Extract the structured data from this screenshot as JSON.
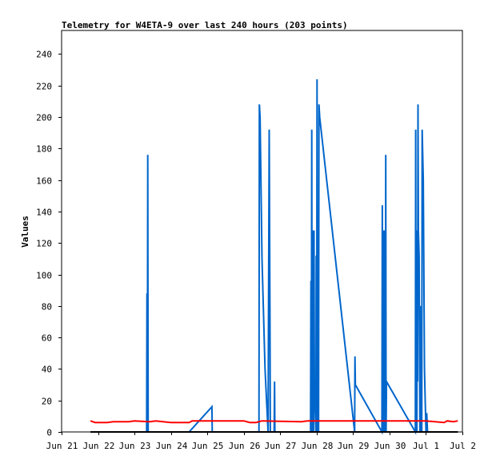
{
  "chart_data": {
    "type": "line",
    "title": "Telemetry for W4ETA-9 over last 240 hours (203 points)",
    "xlabel": "",
    "ylabel": "Values",
    "ylim": [
      0,
      255
    ],
    "yticks": [
      0,
      20,
      40,
      60,
      80,
      100,
      120,
      140,
      160,
      180,
      200,
      220,
      240
    ],
    "xlim": [
      "2024-06-21T00:00",
      "2024-07-02T00:00"
    ],
    "xticks": [
      {
        "label": "Jun 21",
        "x": "2024-06-21T00:00"
      },
      {
        "label": "Jun 22",
        "x": "2024-06-22T00:00"
      },
      {
        "label": "Jun 23",
        "x": "2024-06-23T00:00"
      },
      {
        "label": "Jun 24",
        "x": "2024-06-24T00:00"
      },
      {
        "label": "Jun 25",
        "x": "2024-06-25T00:00"
      },
      {
        "label": "Jun 26",
        "x": "2024-06-26T00:00"
      },
      {
        "label": "Jun 27",
        "x": "2024-06-27T00:00"
      },
      {
        "label": "Jun 28",
        "x": "2024-06-28T00:00"
      },
      {
        "label": "Jun 29",
        "x": "2024-06-29T00:00"
      },
      {
        "label": "Jun 30",
        "x": "2024-06-30T00:00"
      },
      {
        "label": "Jul 1",
        "x": "2024-07-01T00:00"
      },
      {
        "label": "Jul 2",
        "x": "2024-07-02T00:00"
      }
    ],
    "grid": false,
    "series": [
      {
        "color": "#0066cc",
        "points": [
          [
            "2024-06-23T08:00",
            0
          ],
          [
            "2024-06-23T08:15",
            88
          ],
          [
            "2024-06-23T08:30",
            0
          ],
          [
            "2024-06-23T08:45",
            176
          ],
          [
            "2024-06-23T09:00",
            0
          ],
          [
            "2024-06-24T12:00",
            0
          ],
          [
            "2024-06-25T03:00",
            16
          ],
          [
            "2024-06-25T03:15",
            0
          ],
          [
            "2024-06-26T10:00",
            0
          ],
          [
            "2024-06-26T10:15",
            208
          ],
          [
            "2024-06-26T10:45",
            200
          ],
          [
            "2024-06-26T12:00",
            110
          ],
          [
            "2024-06-26T14:00",
            40
          ],
          [
            "2024-06-26T16:00",
            0
          ],
          [
            "2024-06-26T16:45",
            192
          ],
          [
            "2024-06-26T17:15",
            65
          ],
          [
            "2024-06-26T17:30",
            0
          ],
          [
            "2024-06-26T20:00",
            0
          ],
          [
            "2024-06-26T20:15",
            32
          ],
          [
            "2024-06-26T20:30",
            0
          ],
          [
            "2024-06-27T20:00",
            0
          ],
          [
            "2024-06-27T20:15",
            96
          ],
          [
            "2024-06-27T20:30",
            20
          ],
          [
            "2024-06-27T20:45",
            192
          ],
          [
            "2024-06-27T21:00",
            0
          ],
          [
            "2024-06-27T21:15",
            72
          ],
          [
            "2024-06-27T21:30",
            0
          ],
          [
            "2024-06-27T21:45",
            128
          ],
          [
            "2024-06-27T22:00",
            0
          ],
          [
            "2024-06-27T22:15",
            128
          ],
          [
            "2024-06-27T22:30",
            30
          ],
          [
            "2024-06-27T23:30",
            0
          ],
          [
            "2024-06-27T23:45",
            112
          ],
          [
            "2024-06-28T00:00",
            0
          ],
          [
            "2024-06-28T00:15",
            224
          ],
          [
            "2024-06-28T00:30",
            0
          ],
          [
            "2024-06-28T01:00",
            104
          ],
          [
            "2024-06-28T01:15",
            0
          ],
          [
            "2024-06-28T01:30",
            208
          ],
          [
            "2024-06-28T02:00",
            200
          ],
          [
            "2024-06-29T01:00",
            0
          ],
          [
            "2024-06-29T01:15",
            48
          ],
          [
            "2024-06-29T01:30",
            30
          ],
          [
            "2024-06-29T19:00",
            0
          ],
          [
            "2024-06-29T19:15",
            144
          ],
          [
            "2024-06-29T19:30",
            0
          ],
          [
            "2024-06-29T20:00",
            128
          ],
          [
            "2024-06-29T20:30",
            0
          ],
          [
            "2024-06-29T21:00",
            128
          ],
          [
            "2024-06-29T21:15",
            0
          ],
          [
            "2024-06-29T21:30",
            176
          ],
          [
            "2024-06-29T21:45",
            0
          ],
          [
            "2024-06-29T22:00",
            32
          ],
          [
            "2024-06-30T17:00",
            0
          ],
          [
            "2024-06-30T17:15",
            192
          ],
          [
            "2024-06-30T17:30",
            0
          ],
          [
            "2024-06-30T17:45",
            128
          ],
          [
            "2024-06-30T18:00",
            0
          ],
          [
            "2024-06-30T18:15",
            112
          ],
          [
            "2024-06-30T18:30",
            32
          ],
          [
            "2024-06-30T18:45",
            208
          ],
          [
            "2024-06-30T19:00",
            128
          ],
          [
            "2024-06-30T19:30",
            112
          ],
          [
            "2024-06-30T20:00",
            0
          ],
          [
            "2024-06-30T20:15",
            80
          ],
          [
            "2024-06-30T20:30",
            0
          ],
          [
            "2024-06-30T21:00",
            64
          ],
          [
            "2024-06-30T21:15",
            0
          ],
          [
            "2024-06-30T21:30",
            192
          ],
          [
            "2024-06-30T21:45",
            180
          ],
          [
            "2024-06-30T22:15",
            160
          ],
          [
            "2024-06-30T23:00",
            40
          ],
          [
            "2024-06-30T23:30",
            20
          ],
          [
            "2024-07-01T00:00",
            0
          ],
          [
            "2024-07-01T00:30",
            12
          ],
          [
            "2024-07-01T01:00",
            0
          ]
        ]
      },
      {
        "color": "#ff0000",
        "points": [
          [
            "2024-06-21T19:00",
            7
          ],
          [
            "2024-06-21T22:00",
            6
          ],
          [
            "2024-06-22T06:00",
            6
          ],
          [
            "2024-06-22T10:00",
            6.5
          ],
          [
            "2024-06-22T20:00",
            6.5
          ],
          [
            "2024-06-23T00:00",
            7
          ],
          [
            "2024-06-23T10:00",
            6.5
          ],
          [
            "2024-06-23T14:00",
            7
          ],
          [
            "2024-06-24T00:00",
            6
          ],
          [
            "2024-06-24T12:00",
            6
          ],
          [
            "2024-06-24T14:00",
            7
          ],
          [
            "2024-06-26T00:00",
            7
          ],
          [
            "2024-06-26T04:00",
            6
          ],
          [
            "2024-06-26T08:00",
            6
          ],
          [
            "2024-06-26T12:00",
            7
          ],
          [
            "2024-06-27T14:00",
            6.5
          ],
          [
            "2024-06-27T18:00",
            7
          ],
          [
            "2024-06-28T12:00",
            7
          ],
          [
            "2024-06-29T12:00",
            7
          ],
          [
            "2024-06-30T12:00",
            7
          ],
          [
            "2024-07-01T00:00",
            7
          ],
          [
            "2024-07-01T12:00",
            6
          ],
          [
            "2024-07-01T14:00",
            7
          ],
          [
            "2024-07-01T18:00",
            6.5
          ],
          [
            "2024-07-01T21:00",
            7
          ]
        ]
      },
      {
        "color": "#000000",
        "points": [
          [
            "2024-06-21T19:00",
            0
          ],
          [
            "2024-07-01T21:00",
            0
          ]
        ]
      }
    ]
  }
}
